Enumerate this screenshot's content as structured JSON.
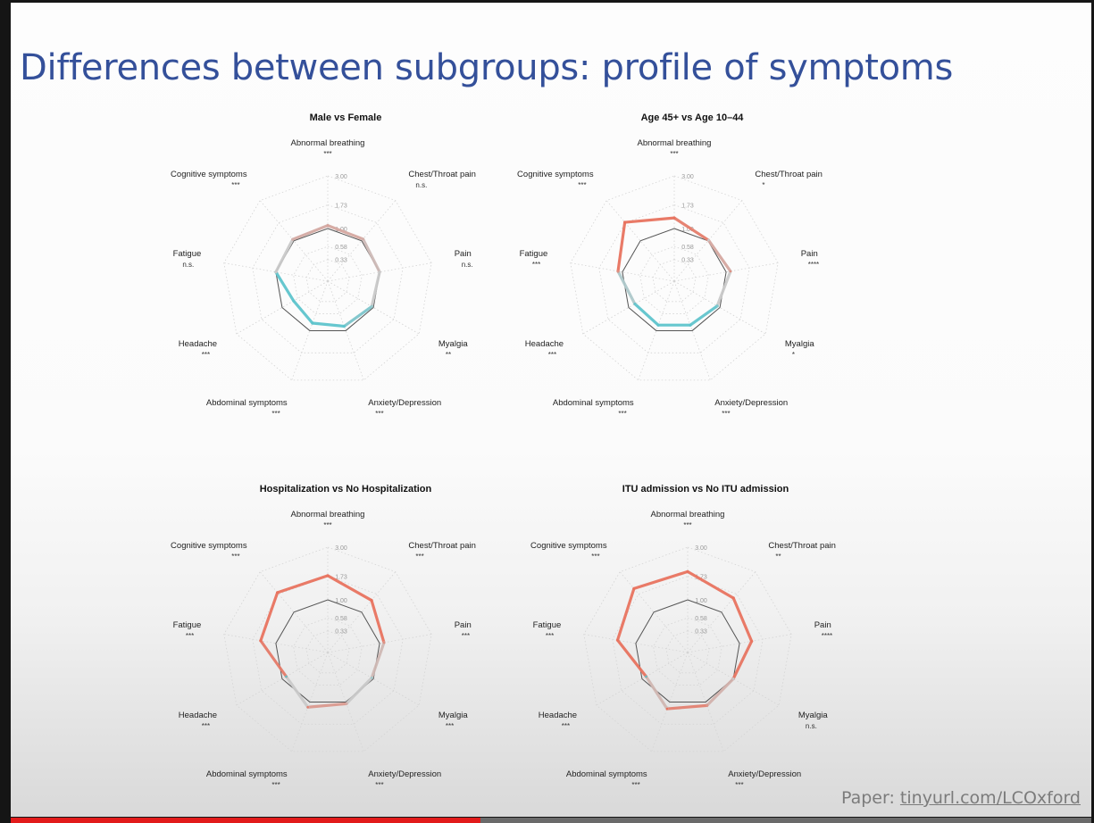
{
  "slide": {
    "title": "Differences between subgroups: profile of symptoms",
    "paper_prefix": "Paper: ",
    "paper_link": "tinyurl.com/LCOxford"
  },
  "video": {
    "progress": 0.435,
    "progress_color": "#e21b1b"
  },
  "colors": {
    "higher": "#e8735f",
    "lower": "#5ec4cc",
    "neutral": "#c9c9c9",
    "reference": "#555555"
  },
  "chart_data": [
    {
      "type": "radar",
      "title": "Male vs Female",
      "axes": [
        "Abnormal breathing",
        "Chest/Throat pain",
        "Pain",
        "Myalgia",
        "Anxiety/Depression",
        "Abdominal symptoms",
        "Headache",
        "Fatigue",
        "Cognitive symptoms"
      ],
      "significance": [
        "***",
        "n.s.",
        "n.s.",
        "**",
        "***",
        "***",
        "***",
        "n.s.",
        "***"
      ],
      "ticks": [
        "0.33",
        "0.58",
        "1.00",
        "1.73",
        "3.00"
      ],
      "reference_value": 1.0,
      "values": [
        1.08,
        1.06,
        1.0,
        0.95,
        0.88,
        0.8,
        0.68,
        1.0,
        1.05
      ]
    },
    {
      "type": "radar",
      "title": "Age 45+ vs Age 10–44",
      "axes": [
        "Abnormal breathing",
        "Chest/Throat pain",
        "Pain",
        "Myalgia",
        "Anxiety/Depression",
        "Abdominal symptoms",
        "Headache",
        "Fatigue",
        "Cognitive symptoms"
      ],
      "significance": [
        "***",
        "*",
        "****",
        "*",
        "***",
        "***",
        "***",
        "***",
        "***"
      ],
      "ticks": [
        "0.33",
        "0.58",
        "1.00",
        "1.73",
        "3.00"
      ],
      "reference_value": 1.0,
      "values": [
        1.3,
        1.02,
        1.12,
        0.92,
        0.85,
        0.85,
        0.82,
        1.12,
        1.75
      ]
    },
    {
      "type": "radar",
      "title": "Hospitalization vs No Hospitalization",
      "axes": [
        "Abnormal breathing",
        "Chest/Throat pain",
        "Pain",
        "Myalgia",
        "Anxiety/Depression",
        "Abdominal symptoms",
        "Headache",
        "Fatigue",
        "Cognitive symptoms"
      ],
      "significance": [
        "***",
        "***",
        "***",
        "***",
        "***",
        "***",
        "***",
        "***",
        "***"
      ],
      "ticks": [
        "0.33",
        "0.58",
        "1.00",
        "1.73",
        "3.00"
      ],
      "reference_value": 1.0,
      "values": [
        1.75,
        1.45,
        1.12,
        0.95,
        1.05,
        1.15,
        0.88,
        1.45,
        1.8
      ]
    },
    {
      "type": "radar",
      "title": "ITU admission vs No ITU admission",
      "axes": [
        "Abnormal breathing",
        "Chest/Throat pain",
        "Pain",
        "Myalgia",
        "Anxiety/Depression",
        "Abdominal symptoms",
        "Headache",
        "Fatigue",
        "Cognitive symptoms"
      ],
      "significance": [
        "***",
        "**",
        "****",
        "n.s.",
        "***",
        "***",
        "***",
        "***",
        "***"
      ],
      "ticks": [
        "0.33",
        "0.58",
        "1.00",
        "1.73",
        "3.00"
      ],
      "reference_value": 1.0,
      "values": [
        1.9,
        1.55,
        1.35,
        1.0,
        1.1,
        1.2,
        0.88,
        1.55,
        2.0
      ]
    }
  ]
}
